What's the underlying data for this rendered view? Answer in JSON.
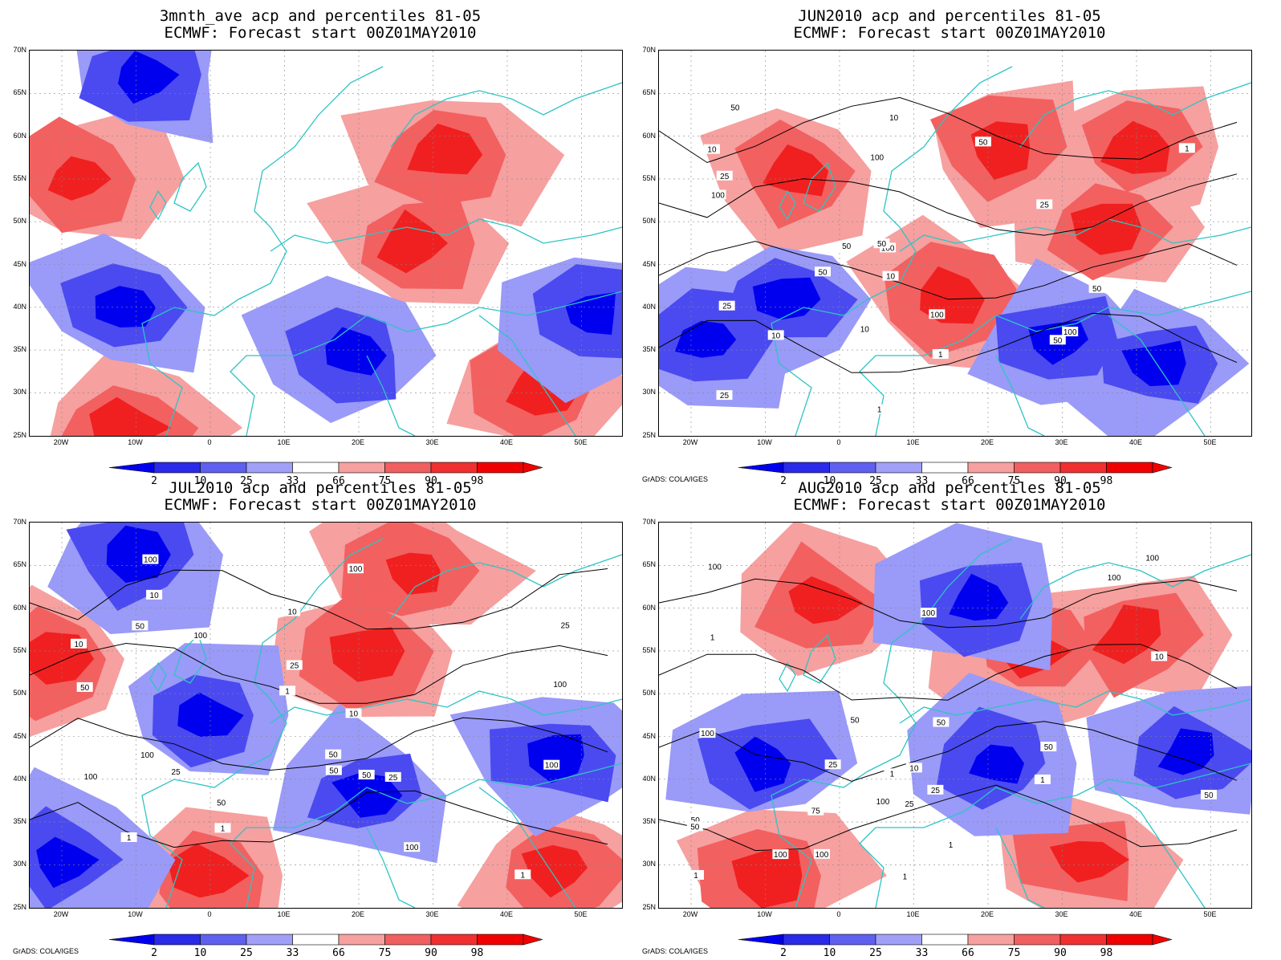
{
  "panels": [
    {
      "title1": "3mnth_ave acp and percentiles 81-05",
      "title2": "ECMWF: Forecast start 00Z01MAY2010",
      "credit": "",
      "contours": []
    },
    {
      "title1": "JUN2010 acp and percentiles 81-05",
      "title2": "ECMWF: Forecast start 00Z01MAY2010",
      "credit": "GrADS: COLA/IGES",
      "contours": [
        "50",
        "100",
        "50",
        "100",
        "50",
        "100",
        "100",
        "50",
        "25",
        "10",
        "50",
        "25",
        "100",
        "50",
        "25",
        "10",
        "1",
        "10",
        "1",
        "10",
        "50",
        "25",
        "1",
        "10"
      ]
    },
    {
      "title1": "JUL2010 acp and percentiles 81-05",
      "title2": "ECMWF: Forecast start 00Z01MAY2010",
      "credit": "GrADS: COLA/IGES",
      "contours": [
        "50",
        "50",
        "100",
        "100",
        "50",
        "100",
        "100",
        "100",
        "100",
        "100",
        "100",
        "50",
        "25",
        "25",
        "10",
        "50",
        "10",
        "10",
        "50",
        "25",
        "1",
        "1",
        "1",
        "25",
        "10",
        "1"
      ]
    },
    {
      "title1": "AUG2010 acp and percentiles 81-05",
      "title2": "ECMWF: Forecast start 00Z01MAY2010",
      "credit": "GrADS: COLA/IGES",
      "contours": [
        "50",
        "100",
        "100",
        "100",
        "100",
        "50",
        "100",
        "50",
        "100",
        "100",
        "50",
        "100",
        "50",
        "25",
        "75",
        "25",
        "10",
        "1",
        "1",
        "1",
        "50",
        "25",
        "10",
        "1",
        "1",
        "1"
      ]
    }
  ],
  "lat_labels": [
    "70N",
    "65N",
    "60N",
    "55N",
    "50N",
    "45N",
    "40N",
    "35N",
    "30N",
    "25N"
  ],
  "lon_labels": [
    "20W",
    "10W",
    "0",
    "10E",
    "20E",
    "30E",
    "40E",
    "50E"
  ],
  "colorbar_labels": [
    "2",
    "10",
    "25",
    "33",
    "66",
    "75",
    "90",
    "98"
  ],
  "colors": {
    "coast": "#2ec4c4",
    "blue_dark": "#0000ee",
    "blue_mid": "#4a4af0",
    "blue_light": "#9a9af8",
    "red_light": "#f6a0a0",
    "red_mid": "#f36060",
    "red_dark": "#f02020"
  }
}
